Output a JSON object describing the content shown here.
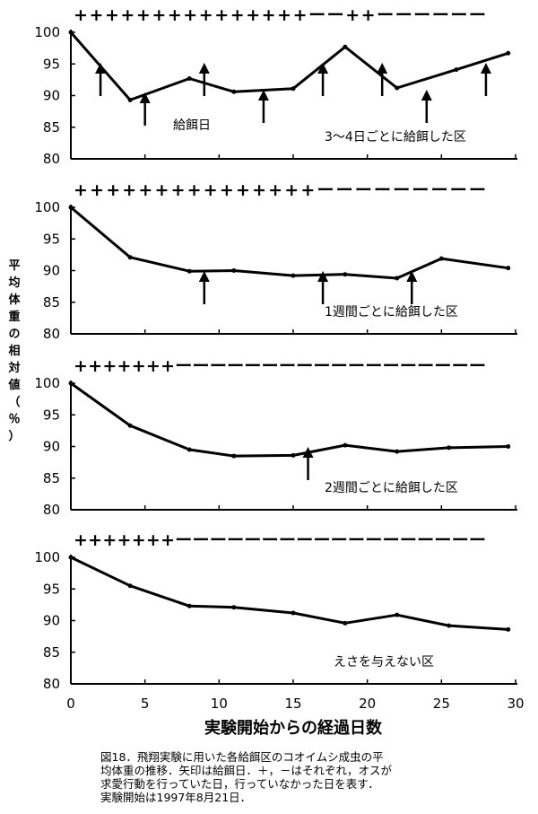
{
  "chart_data": [
    {
      "type": "line",
      "annotation": "3〜4日ごとに給餌した区",
      "arrow_label": "給餌日",
      "x": [
        0,
        4,
        8,
        11,
        15,
        18.5,
        22,
        26,
        29.5
      ],
      "y": [
        100,
        89.3,
        92.7,
        90.6,
        91.1,
        97.7,
        91.2,
        94.1,
        96.7
      ],
      "feeding_days": [
        2,
        5,
        9,
        13,
        17,
        21,
        24,
        28
      ],
      "courtship": "+++++++++++++++ーー++ーーーーーー",
      "xlim": [
        0,
        30
      ],
      "ylim": [
        80,
        100
      ],
      "yticks": [
        80,
        85,
        90,
        95,
        100
      ]
    },
    {
      "type": "line",
      "annotation": "1週間ごとに給餌した区",
      "x": [
        0,
        4,
        8,
        11,
        15,
        18.5,
        22,
        25,
        29.5
      ],
      "y": [
        100,
        92.1,
        89.9,
        90.0,
        89.2,
        89.4,
        88.8,
        91.9,
        90.4
      ],
      "feeding_days": [
        9,
        17,
        23
      ],
      "courtship": "+++++++++++++++ーーーーーーーーー",
      "xlim": [
        0,
        30
      ],
      "ylim": [
        80,
        100
      ],
      "yticks": [
        80,
        85,
        90,
        95,
        100
      ]
    },
    {
      "type": "line",
      "annotation": "2週間ごとに給餌した区",
      "x": [
        0,
        4,
        8,
        11,
        15,
        18.5,
        22,
        25.5,
        29.5
      ],
      "y": [
        100,
        93.3,
        89.5,
        88.5,
        88.6,
        90.2,
        89.2,
        89.8,
        90.0
      ],
      "feeding_days": [
        16
      ],
      "courtship": "+++++++ーーーーーーーーーーーーーーーーーー",
      "xlim": [
        0,
        30
      ],
      "ylim": [
        80,
        100
      ],
      "yticks": [
        80,
        85,
        90,
        95,
        100
      ]
    },
    {
      "type": "line",
      "annotation": "えさを与えない区",
      "x": [
        0,
        4,
        8,
        11,
        15,
        18.5,
        22,
        25.5,
        29.5
      ],
      "y": [
        100,
        95.5,
        92.3,
        92.1,
        91.2,
        89.6,
        90.9,
        89.2,
        88.6
      ],
      "feeding_days": [],
      "courtship": "+++++++ーーーーーーーーーーーーーーーーーー",
      "xlim": [
        0,
        30
      ],
      "ylim": [
        80,
        100
      ],
      "yticks": [
        80,
        85,
        90,
        95,
        100
      ],
      "xticks": [
        0,
        5,
        10,
        15,
        20,
        25,
        30
      ]
    }
  ],
  "xlabel": "実験開始からの経過日数",
  "ylabel": "平均体重の相対値（％）",
  "caption_lines": [
    "図18．飛翔実験に用いた各給餌区のコオイムシ成虫の平",
    "均体重の推移．矢印は給餌日．＋，－はそれぞれ，オスが",
    "求愛行動を行っていた日，行っていなかった日を表す．",
    "実験開始は1997年8月21日．"
  ],
  "colors": {
    "line": "#000000",
    "background": "#ffffff"
  }
}
